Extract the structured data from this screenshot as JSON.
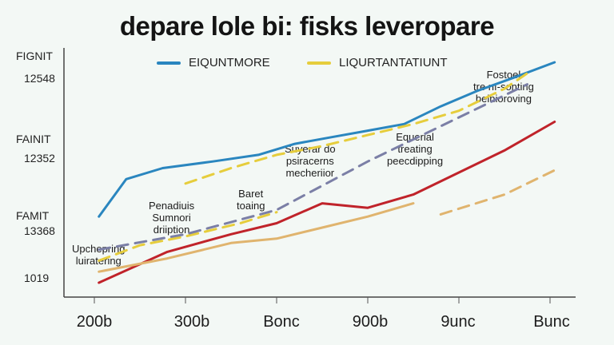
{
  "chart_data": {
    "type": "line",
    "title": "depare lole bi: fisks leveropare",
    "categories": [
      "200b",
      "300b",
      "Bonc",
      "900b",
      "9unc",
      "Bunc"
    ],
    "y_group_labels": [
      "FIGNIT",
      "FAINIT",
      "FAMIT"
    ],
    "y_value_labels": [
      "12548",
      "12352",
      "13368",
      "1019"
    ],
    "xlabel": "",
    "ylabel": "",
    "ylim": [
      0,
      100
    ],
    "grid": false,
    "legend": [
      "EIQUNTMORE",
      "LIQURTANTATIUNT"
    ],
    "legend_position": "top-center",
    "series": [
      {
        "name": "EIQUNTMORE",
        "color": "#2a86bf",
        "style": "solid",
        "x": [
          0.05,
          0.35,
          0.75,
          1.3,
          1.8,
          2.2,
          2.6,
          3.0,
          3.4,
          3.8,
          4.2,
          4.6,
          5.05
        ],
        "y": [
          30,
          47,
          52,
          55,
          58,
          63,
          66,
          69,
          72,
          80,
          87,
          93,
          100
        ]
      },
      {
        "name": "LIQURTANTATIUNT",
        "color": "#e6cd3c",
        "style": "dashed",
        "x": [
          0.05,
          0.5,
          1.0,
          1.6,
          2.0
        ],
        "y": [
          10,
          17,
          21,
          27,
          32
        ]
      },
      {
        "name": "LIQURTANTATIUNT (upper)",
        "color": "#e6cd3c",
        "style": "dashed",
        "x": [
          1.0,
          1.5,
          2.0,
          2.5,
          3.0,
          3.5,
          4.0,
          4.5,
          4.75
        ],
        "y": [
          45,
          52,
          58,
          62,
          67,
          72,
          78,
          88,
          95
        ]
      },
      {
        "name": "Trend",
        "color": "#7b7fa6",
        "style": "dashed",
        "x": [
          0.05,
          1.0,
          2.0,
          3.0,
          4.0,
          4.75
        ],
        "y": [
          15,
          22,
          33,
          55,
          75,
          90
        ]
      },
      {
        "name": "Red",
        "color": "#c0232a",
        "style": "solid",
        "x": [
          0.05,
          0.8,
          1.5,
          2.0,
          2.5,
          3.0,
          3.5,
          4.0,
          4.5,
          5.05
        ],
        "y": [
          0,
          14,
          22,
          27,
          36,
          34,
          40,
          50,
          60,
          73
        ]
      },
      {
        "name": "Tan",
        "color": "#e0b46e",
        "style": "solid",
        "x": [
          0.05,
          0.8,
          1.5,
          2.0,
          2.5,
          3.0,
          3.5
        ],
        "y": [
          5,
          11,
          18,
          20,
          25,
          30,
          36
        ]
      },
      {
        "name": "Tan (dashed)",
        "color": "#e0b46e",
        "style": "dashed",
        "x": [
          3.8,
          4.5,
          5.05
        ],
        "y": [
          31,
          40,
          51
        ]
      }
    ],
    "annotations": [
      {
        "text": "Penadiuis\nSumnori\ndriiption",
        "x": 1.0,
        "y": 27
      },
      {
        "text": "Upchepring\nluiratering",
        "x": 0.1,
        "y": 9
      },
      {
        "text": "Baret\ntoaing",
        "x": 1.8,
        "y": 32
      },
      {
        "text": "Suyerar do\npsiracerns\nmecheriior",
        "x": 2.45,
        "y": 50
      },
      {
        "text": "Equerial\ntreating\npeecdipping",
        "x": 3.6,
        "y": 55
      },
      {
        "text": "Fostoel\ntre nı-sonting\nbeinioroving",
        "x": 4.4,
        "y": 85
      }
    ]
  }
}
